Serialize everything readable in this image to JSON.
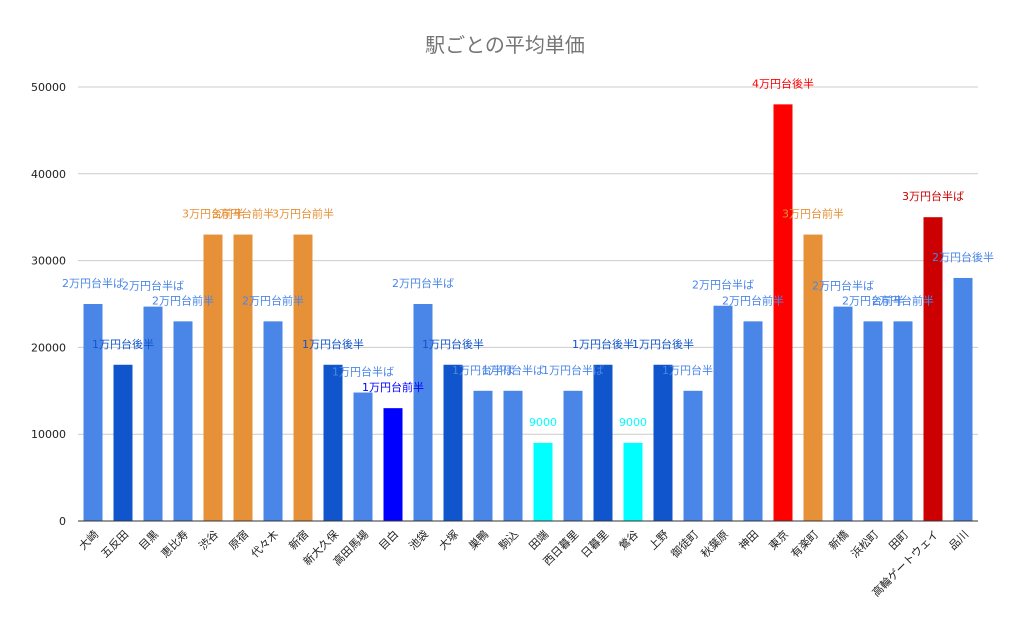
{
  "chart_data": {
    "type": "bar",
    "title": "駅ごとの平均単価",
    "xlabel": "",
    "ylabel": "",
    "ylim": [
      0,
      50000
    ],
    "y_ticks": [
      "0",
      "10000",
      "20000",
      "30000",
      "40000",
      "50000"
    ],
    "grid": true,
    "categories": [
      "大崎",
      "五反田",
      "目黒",
      "恵比寿",
      "渋谷",
      "原宿",
      "代々木",
      "新宿",
      "新大久保",
      "高田馬場",
      "目白",
      "池袋",
      "大塚",
      "巣鴨",
      "駒込",
      "田端",
      "西日暮里",
      "日暮里",
      "鶯谷",
      "上野",
      "御徒町",
      "秋葉原",
      "神田",
      "東京",
      "有楽町",
      "新橋",
      "浜松町",
      "田町",
      "高輪ゲートウェイ",
      "品川"
    ],
    "values": [
      25000,
      18000,
      24700,
      23000,
      33000,
      33000,
      23000,
      33000,
      18000,
      14800,
      13000,
      25000,
      18000,
      15000,
      15000,
      9000,
      15000,
      18000,
      9000,
      18000,
      15000,
      24800,
      23000,
      48000,
      33000,
      24700,
      23000,
      23000,
      35000,
      28000
    ],
    "data_labels": [
      "2万円台半ば",
      "1万円台後半",
      "2万円台半ば",
      "2万円台前半",
      "3万円台前半",
      "3万円台前半",
      "2万円台前半",
      "3万円台前半",
      "1万円台後半",
      "1万円台半ば",
      "1万円台前半",
      "2万円台半ば",
      "1万円台後半",
      "1万円台半ば",
      "1万円台半ば",
      "9000",
      "1万円台半ば",
      "1万円台後半",
      "9000",
      "1万円台後半",
      "1万円台半ば",
      "2万円台半ば",
      "2万円台前半",
      "4万円台後半",
      "3万円台前半",
      "2万円台半ば",
      "2万円台前半",
      "2万円台前半",
      "3万円台半ば",
      "2万円台後半"
    ],
    "bar_colors": [
      "#4a86e8",
      "#1155cc",
      "#4a86e8",
      "#4a86e8",
      "#e69138",
      "#e69138",
      "#4a86e8",
      "#e69138",
      "#1155cc",
      "#4a86e8",
      "#0000ff",
      "#4a86e8",
      "#1155cc",
      "#4a86e8",
      "#4a86e8",
      "#00ffff",
      "#4a86e8",
      "#1155cc",
      "#00ffff",
      "#1155cc",
      "#4a86e8",
      "#4a86e8",
      "#4a86e8",
      "#ff0000",
      "#e69138",
      "#4a86e8",
      "#4a86e8",
      "#4a86e8",
      "#cc0000",
      "#4a86e8"
    ],
    "label_colors": [
      "#4a86e8",
      "#1155cc",
      "#4a86e8",
      "#4a86e8",
      "#e69138",
      "#e69138",
      "#4a86e8",
      "#e69138",
      "#1155cc",
      "#4a86e8",
      "#0000ff",
      "#4a86e8",
      "#1155cc",
      "#4a86e8",
      "#4a86e8",
      "#00ffff",
      "#4a86e8",
      "#1155cc",
      "#00ffff",
      "#1155cc",
      "#4a86e8",
      "#4a86e8",
      "#4a86e8",
      "#ff0000",
      "#e69138",
      "#4a86e8",
      "#4a86e8",
      "#4a86e8",
      "#cc0000",
      "#4a86e8"
    ]
  }
}
